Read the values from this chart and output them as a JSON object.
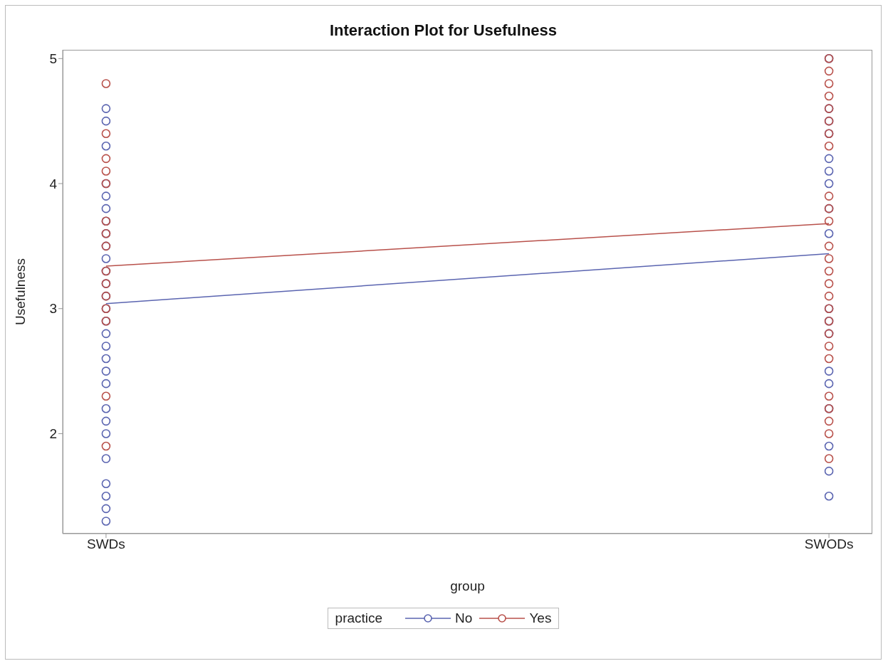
{
  "chart_data": {
    "type": "line",
    "title": "Interaction Plot for Usefulness",
    "xlabel": "group",
    "ylabel": "Usefulness",
    "legend_title": "practice",
    "legend": "bottom",
    "categories": [
      "SWDs",
      "SWODs"
    ],
    "ylim": [
      1.2,
      5.07
    ],
    "yticks": [
      2,
      3,
      4,
      5
    ],
    "series": [
      {
        "type": "scatter",
        "marker": "circle",
        "color": "#5a64b0",
        "x": [
          "SWDs",
          "SWDs",
          "SWDs",
          "SWDs",
          "SWDs",
          "SWDs",
          "SWDs",
          "SWDs",
          "SWDs",
          "SWDs",
          "SWDs",
          "SWDs",
          "SWDs",
          "SWDs",
          "SWDs",
          "SWDs",
          "SWDs",
          "SWDs",
          "SWDs",
          "SWDs",
          "SWDs",
          "SWDs",
          "SWDs",
          "SWDs",
          "SWDs",
          "SWDs",
          "SWDs",
          "SWDs",
          "SWODs",
          "SWODs",
          "SWODs",
          "SWODs",
          "SWODs",
          "SWODs",
          "SWODs",
          "SWODs",
          "SWODs",
          "SWODs",
          "SWODs",
          "SWODs",
          "SWODs",
          "SWODs",
          "SWODs",
          "SWODs",
          "SWODs",
          "SWODs"
        ],
        "values": [
          4.6,
          4.5,
          4.3,
          4.0,
          3.9,
          3.8,
          3.7,
          3.6,
          3.5,
          3.4,
          3.3,
          3.2,
          3.1,
          3.0,
          2.9,
          2.8,
          2.7,
          2.6,
          2.5,
          2.4,
          2.2,
          2.1,
          2.0,
          1.8,
          1.6,
          1.5,
          1.4,
          1.3,
          5.0,
          4.6,
          4.5,
          4.4,
          4.2,
          4.1,
          4.0,
          3.8,
          3.6,
          3.0,
          2.9,
          2.8,
          2.5,
          2.4,
          2.2,
          1.9,
          1.7,
          1.5
        ]
      },
      {
        "type": "scatter",
        "marker": "circle",
        "color": "#b8504a",
        "x": [
          "SWDs",
          "SWDs",
          "SWDs",
          "SWDs",
          "SWDs",
          "SWDs",
          "SWDs",
          "SWDs",
          "SWDs",
          "SWDs",
          "SWDs",
          "SWDs",
          "SWDs",
          "SWDs",
          "SWDs",
          "SWODs",
          "SWODs",
          "SWODs",
          "SWODs",
          "SWODs",
          "SWODs",
          "SWODs",
          "SWODs",
          "SWODs",
          "SWODs",
          "SWODs",
          "SWODs",
          "SWODs",
          "SWODs",
          "SWODs",
          "SWODs",
          "SWODs",
          "SWODs",
          "SWODs",
          "SWODs",
          "SWODs",
          "SWODs",
          "SWODs",
          "SWODs",
          "SWODs",
          "SWODs"
        ],
        "values": [
          4.8,
          4.4,
          4.2,
          4.1,
          4.0,
          3.7,
          3.6,
          3.5,
          3.3,
          3.2,
          3.0,
          2.9,
          2.3,
          1.9,
          3.1,
          5.0,
          4.9,
          4.8,
          4.7,
          4.6,
          4.5,
          4.4,
          4.3,
          3.9,
          3.8,
          3.7,
          3.5,
          3.4,
          3.3,
          3.2,
          3.1,
          3.0,
          2.9,
          2.8,
          2.7,
          2.6,
          2.3,
          2.2,
          2.1,
          2.0,
          1.8
        ]
      },
      {
        "name": "No",
        "color": "#5a64b0",
        "values": [
          3.04,
          3.44
        ]
      },
      {
        "name": "Yes",
        "color": "#b8504a",
        "values": [
          3.34,
          3.68
        ]
      }
    ]
  }
}
